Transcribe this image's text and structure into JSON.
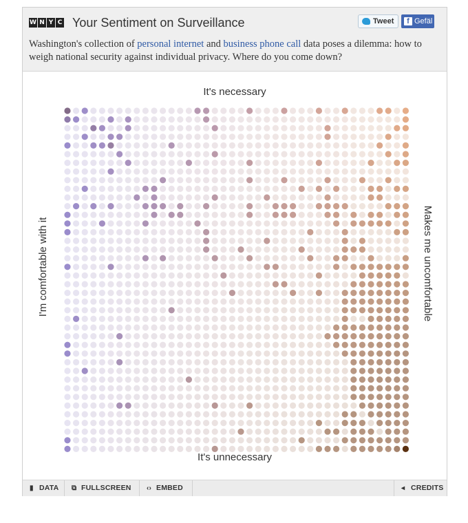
{
  "header": {
    "logo_letters": [
      "W",
      "N",
      "Y",
      "C"
    ],
    "title": "Your Sentiment on Surveillance",
    "tweet_label": "Tweet",
    "facebook_label": "Gefäl",
    "intro_before": "Washington's collection of ",
    "intro_link1": "personal internet",
    "intro_middle": " and ",
    "intro_link2": "business phone call",
    "intro_after": " data poses a dilemma: how to weigh national security against individual privacy. Where do you come down?",
    "link_color": "#2f5aa5"
  },
  "chart_data": {
    "type": "heatmap",
    "title": "",
    "grid": [
      40,
      40
    ],
    "labels": {
      "top": "It's necessary",
      "bottom": "It's unnecessary",
      "left": "I'm comfortable with it",
      "right": "Makes me uncomfortable"
    },
    "x_axis": "comfortable → uncomfortable (columns 0–39)",
    "y_axis": "necessary → unnecessary (rows 0–39)",
    "color_left": "#9a8ccc",
    "color_right": "#e6ad88",
    "color_bottom_right": "#b59580",
    "color_peak": "#5b3010",
    "faint_left": "#e7e4f2",
    "faint_right": "#f4e7de",
    "faint_bottom_right": "#e7ddd6",
    "responses": [
      [
        0,
        0,
        3
      ],
      [
        0,
        1,
        2
      ],
      [
        1,
        1,
        1
      ],
      [
        2,
        0,
        1
      ],
      [
        3,
        2,
        2
      ],
      [
        4,
        2,
        1
      ],
      [
        2,
        3,
        1
      ],
      [
        5,
        3,
        1
      ],
      [
        6,
        3,
        1
      ],
      [
        3,
        4,
        1
      ],
      [
        4,
        4,
        1
      ],
      [
        5,
        4,
        2
      ],
      [
        0,
        4,
        1
      ],
      [
        7,
        1,
        1
      ],
      [
        5,
        1,
        1
      ],
      [
        7,
        2,
        1
      ],
      [
        12,
        4,
        1
      ],
      [
        15,
        0,
        1
      ],
      [
        16,
        0,
        1
      ],
      [
        16,
        1,
        1
      ],
      [
        17,
        2,
        1
      ],
      [
        14,
        6,
        1
      ],
      [
        17,
        5,
        1
      ],
      [
        21,
        0,
        1
      ],
      [
        21,
        6,
        1
      ],
      [
        25,
        0,
        1
      ],
      [
        29,
        0,
        1
      ],
      [
        30,
        2,
        1
      ],
      [
        32,
        0,
        1
      ],
      [
        30,
        3,
        1
      ],
      [
        29,
        6,
        1
      ],
      [
        36,
        0,
        1
      ],
      [
        37,
        0,
        1
      ],
      [
        37,
        3,
        1
      ],
      [
        38,
        2,
        1
      ],
      [
        39,
        1,
        1
      ],
      [
        39,
        2,
        1
      ],
      [
        39,
        0,
        1
      ],
      [
        36,
        4,
        1
      ],
      [
        35,
        6,
        1
      ],
      [
        39,
        4,
        1
      ],
      [
        39,
        5,
        1
      ],
      [
        39,
        6,
        1
      ],
      [
        38,
        6,
        1
      ],
      [
        37,
        5,
        1
      ],
      [
        6,
        5,
        1
      ],
      [
        7,
        6,
        1
      ],
      [
        5,
        7,
        1
      ],
      [
        2,
        9,
        1
      ],
      [
        0,
        12,
        1
      ],
      [
        4,
        13,
        1
      ],
      [
        11,
        8,
        1
      ],
      [
        9,
        9,
        1
      ],
      [
        8,
        10,
        1
      ],
      [
        10,
        9,
        1
      ],
      [
        10,
        10,
        1
      ],
      [
        9,
        11,
        1
      ],
      [
        10,
        11,
        1
      ],
      [
        11,
        11,
        1
      ],
      [
        13,
        11,
        1
      ],
      [
        10,
        12,
        1
      ],
      [
        12,
        12,
        1
      ],
      [
        13,
        12,
        1
      ],
      [
        9,
        13,
        1
      ],
      [
        1,
        11,
        1
      ],
      [
        3,
        11,
        1
      ],
      [
        5,
        11,
        1
      ],
      [
        0,
        13,
        1
      ],
      [
        0,
        14,
        1
      ],
      [
        15,
        13,
        1
      ],
      [
        16,
        11,
        1
      ],
      [
        16,
        14,
        1
      ],
      [
        17,
        10,
        1
      ],
      [
        21,
        8,
        1
      ],
      [
        21,
        11,
        1
      ],
      [
        21,
        12,
        1
      ],
      [
        24,
        11,
        1
      ],
      [
        23,
        10,
        1
      ],
      [
        25,
        11,
        1
      ],
      [
        26,
        11,
        1
      ],
      [
        25,
        12,
        1
      ],
      [
        26,
        12,
        1
      ],
      [
        24,
        12,
        1
      ],
      [
        25,
        8,
        1
      ],
      [
        27,
        9,
        1
      ],
      [
        30,
        8,
        1
      ],
      [
        29,
        9,
        1
      ],
      [
        31,
        9,
        1
      ],
      [
        30,
        10,
        1
      ],
      [
        29,
        11,
        1
      ],
      [
        30,
        11,
        1
      ],
      [
        31,
        11,
        1
      ],
      [
        32,
        11,
        1
      ],
      [
        30,
        12,
        1
      ],
      [
        31,
        12,
        1
      ],
      [
        33,
        12,
        1
      ],
      [
        31,
        13,
        1
      ],
      [
        33,
        13,
        1
      ],
      [
        32,
        14,
        1
      ],
      [
        28,
        14,
        1
      ],
      [
        34,
        8,
        1
      ],
      [
        35,
        9,
        1
      ],
      [
        36,
        9,
        1
      ],
      [
        37,
        8,
        1
      ],
      [
        38,
        9,
        1
      ],
      [
        39,
        9,
        1
      ],
      [
        35,
        10,
        1
      ],
      [
        36,
        10,
        1
      ],
      [
        37,
        11,
        1
      ],
      [
        38,
        11,
        1
      ],
      [
        39,
        11,
        1
      ],
      [
        35,
        12,
        1
      ],
      [
        36,
        12,
        1
      ],
      [
        38,
        12,
        1
      ],
      [
        39,
        12,
        1
      ],
      [
        34,
        13,
        1
      ],
      [
        35,
        13,
        1
      ],
      [
        36,
        13,
        1
      ],
      [
        37,
        13,
        1
      ],
      [
        39,
        13,
        1
      ],
      [
        38,
        14,
        1
      ],
      [
        39,
        14,
        1
      ],
      [
        0,
        18,
        1
      ],
      [
        5,
        18,
        1
      ],
      [
        9,
        17,
        1
      ],
      [
        11,
        17,
        1
      ],
      [
        16,
        15,
        1
      ],
      [
        16,
        16,
        1
      ],
      [
        17,
        17,
        1
      ],
      [
        20,
        16,
        1
      ],
      [
        21,
        17,
        1
      ],
      [
        18,
        19,
        1
      ],
      [
        19,
        21,
        1
      ],
      [
        23,
        15,
        1
      ],
      [
        23,
        18,
        1
      ],
      [
        24,
        18,
        1
      ],
      [
        24,
        20,
        1
      ],
      [
        25,
        20,
        1
      ],
      [
        27,
        16,
        1
      ],
      [
        28,
        17,
        1
      ],
      [
        26,
        21,
        1
      ],
      [
        29,
        19,
        1
      ],
      [
        29,
        21,
        1
      ],
      [
        32,
        15,
        1
      ],
      [
        32,
        16,
        1
      ],
      [
        32,
        17,
        1
      ],
      [
        33,
        16,
        1
      ],
      [
        34,
        15,
        1
      ],
      [
        34,
        16,
        1
      ],
      [
        31,
        17,
        1
      ],
      [
        31,
        18,
        1
      ],
      [
        33,
        18,
        1
      ],
      [
        34,
        18,
        1
      ],
      [
        35,
        17,
        1
      ],
      [
        35,
        18,
        1
      ],
      [
        36,
        18,
        1
      ],
      [
        37,
        18,
        1
      ],
      [
        38,
        18,
        1
      ],
      [
        39,
        17,
        1
      ],
      [
        39,
        18,
        1
      ],
      [
        34,
        19,
        1
      ],
      [
        35,
        19,
        1
      ],
      [
        36,
        19,
        1
      ],
      [
        37,
        19,
        1
      ],
      [
        38,
        19,
        1
      ],
      [
        33,
        20,
        1
      ],
      [
        34,
        20,
        1
      ],
      [
        35,
        20,
        1
      ],
      [
        36,
        20,
        1
      ],
      [
        37,
        20,
        1
      ],
      [
        38,
        20,
        1
      ],
      [
        39,
        20,
        1
      ],
      [
        32,
        21,
        1
      ],
      [
        33,
        21,
        1
      ],
      [
        34,
        21,
        1
      ],
      [
        35,
        21,
        1
      ],
      [
        36,
        21,
        1
      ],
      [
        37,
        21,
        1
      ],
      [
        38,
        21,
        1
      ],
      [
        39,
        21,
        1
      ],
      [
        32,
        22,
        1
      ],
      [
        33,
        22,
        1
      ],
      [
        34,
        22,
        1
      ],
      [
        35,
        22,
        1
      ],
      [
        36,
        22,
        1
      ],
      [
        37,
        22,
        1
      ],
      [
        38,
        22,
        1
      ],
      [
        39,
        22,
        1
      ],
      [
        32,
        23,
        1
      ],
      [
        33,
        23,
        1
      ],
      [
        34,
        23,
        1
      ],
      [
        35,
        23,
        1
      ],
      [
        36,
        23,
        1
      ],
      [
        37,
        23,
        1
      ],
      [
        38,
        23,
        1
      ],
      [
        39,
        23,
        1
      ],
      [
        35,
        24,
        1
      ],
      [
        36,
        24,
        1
      ],
      [
        37,
        24,
        1
      ],
      [
        38,
        24,
        1
      ],
      [
        39,
        24,
        1
      ],
      [
        1,
        24,
        1
      ],
      [
        12,
        23,
        1
      ],
      [
        0,
        27,
        1
      ],
      [
        0,
        28,
        1
      ],
      [
        6,
        26,
        1
      ],
      [
        2,
        30,
        1
      ],
      [
        6,
        29,
        1
      ],
      [
        14,
        31,
        1
      ],
      [
        6,
        34,
        1
      ],
      [
        7,
        34,
        1
      ],
      [
        0,
        38,
        1
      ],
      [
        0,
        39,
        1
      ],
      [
        17,
        39,
        1
      ],
      [
        17,
        34,
        1
      ],
      [
        21,
        34,
        1
      ],
      [
        20,
        37,
        1
      ],
      [
        27,
        38,
        1
      ],
      [
        29,
        36,
        1
      ],
      [
        30,
        37,
        1
      ],
      [
        30,
        26,
        1
      ],
      [
        31,
        25,
        1
      ],
      [
        31,
        26,
        1
      ],
      [
        31,
        27,
        1
      ],
      [
        32,
        24,
        1
      ],
      [
        32,
        25,
        1
      ],
      [
        32,
        26,
        1
      ],
      [
        32,
        27,
        1
      ],
      [
        32,
        28,
        1
      ],
      [
        33,
        25,
        1
      ],
      [
        33,
        26,
        1
      ],
      [
        33,
        27,
        1
      ],
      [
        33,
        28,
        1
      ],
      [
        33,
        29,
        1
      ],
      [
        34,
        25,
        1
      ],
      [
        34,
        26,
        1
      ],
      [
        34,
        27,
        1
      ],
      [
        34,
        28,
        1
      ],
      [
        34,
        29,
        1
      ],
      [
        34,
        30,
        1
      ],
      [
        35,
        25,
        1
      ],
      [
        35,
        26,
        1
      ],
      [
        35,
        27,
        1
      ],
      [
        35,
        28,
        1
      ],
      [
        35,
        29,
        1
      ],
      [
        35,
        30,
        1
      ],
      [
        35,
        31,
        1
      ],
      [
        36,
        25,
        1
      ],
      [
        36,
        26,
        1
      ],
      [
        36,
        27,
        1
      ],
      [
        36,
        28,
        1
      ],
      [
        36,
        29,
        1
      ],
      [
        36,
        30,
        1
      ],
      [
        36,
        31,
        1
      ],
      [
        36,
        32,
        1
      ],
      [
        37,
        25,
        1
      ],
      [
        37,
        26,
        1
      ],
      [
        37,
        27,
        1
      ],
      [
        37,
        28,
        1
      ],
      [
        37,
        29,
        1
      ],
      [
        37,
        30,
        1
      ],
      [
        37,
        31,
        1
      ],
      [
        37,
        32,
        1
      ],
      [
        37,
        33,
        1
      ],
      [
        38,
        25,
        1
      ],
      [
        38,
        26,
        1
      ],
      [
        38,
        27,
        1
      ],
      [
        38,
        28,
        1
      ],
      [
        38,
        29,
        1
      ],
      [
        38,
        30,
        1
      ],
      [
        38,
        31,
        1
      ],
      [
        38,
        32,
        1
      ],
      [
        38,
        33,
        1
      ],
      [
        38,
        34,
        1
      ],
      [
        39,
        25,
        1
      ],
      [
        39,
        26,
        1
      ],
      [
        39,
        27,
        1
      ],
      [
        39,
        28,
        1
      ],
      [
        39,
        29,
        1
      ],
      [
        39,
        30,
        1
      ],
      [
        39,
        31,
        1
      ],
      [
        39,
        32,
        1
      ],
      [
        39,
        33,
        1
      ],
      [
        39,
        34,
        1
      ],
      [
        33,
        30,
        1
      ],
      [
        33,
        31,
        1
      ],
      [
        33,
        32,
        1
      ],
      [
        33,
        33,
        1
      ],
      [
        34,
        31,
        1
      ],
      [
        34,
        32,
        1
      ],
      [
        34,
        33,
        1
      ],
      [
        34,
        34,
        1
      ],
      [
        35,
        32,
        1
      ],
      [
        35,
        33,
        1
      ],
      [
        35,
        34,
        1
      ],
      [
        35,
        35,
        1
      ],
      [
        36,
        33,
        1
      ],
      [
        36,
        34,
        1
      ],
      [
        36,
        35,
        1
      ],
      [
        36,
        36,
        1
      ],
      [
        37,
        34,
        1
      ],
      [
        37,
        35,
        1
      ],
      [
        37,
        36,
        1
      ],
      [
        37,
        37,
        1
      ],
      [
        38,
        35,
        1
      ],
      [
        38,
        36,
        1
      ],
      [
        38,
        37,
        1
      ],
      [
        38,
        38,
        1
      ],
      [
        39,
        35,
        1
      ],
      [
        39,
        36,
        1
      ],
      [
        39,
        37,
        1
      ],
      [
        39,
        38,
        1
      ],
      [
        32,
        35,
        1
      ],
      [
        32,
        36,
        1
      ],
      [
        33,
        35,
        1
      ],
      [
        33,
        36,
        1
      ],
      [
        33,
        37,
        1
      ],
      [
        34,
        36,
        1
      ],
      [
        34,
        37,
        1
      ],
      [
        34,
        38,
        1
      ],
      [
        35,
        37,
        1
      ],
      [
        35,
        38,
        1
      ],
      [
        35,
        39,
        1
      ],
      [
        36,
        38,
        1
      ],
      [
        36,
        39,
        1
      ],
      [
        37,
        38,
        1
      ],
      [
        37,
        39,
        1
      ],
      [
        38,
        39,
        2
      ],
      [
        39,
        39,
        5
      ],
      [
        33,
        38,
        1
      ],
      [
        33,
        39,
        1
      ],
      [
        34,
        39,
        1
      ],
      [
        32,
        38,
        1
      ],
      [
        31,
        39,
        1
      ],
      [
        29,
        39,
        1
      ],
      [
        30,
        39,
        1
      ],
      [
        31,
        37,
        1
      ]
    ]
  },
  "footer": {
    "data_icon": "bar-chart-icon",
    "data_label": "DATA",
    "fullscreen_icon": "fullscreen-icon",
    "fullscreen_label": "FULLSCREEN",
    "embed_icon": "embed-icon",
    "embed_label": "EMBED",
    "credits_icon": "credits-icon",
    "credits_label": "CREDITS"
  }
}
